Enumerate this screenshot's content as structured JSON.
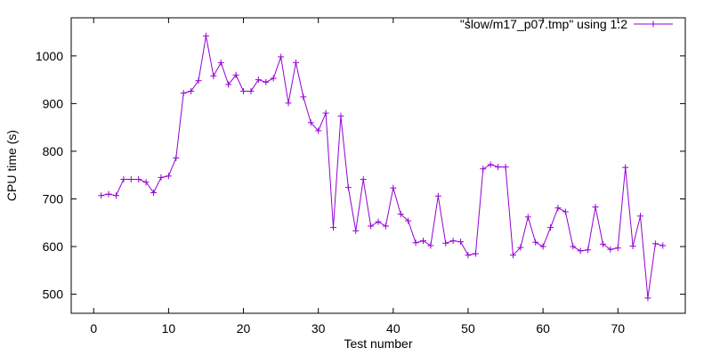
{
  "chart_data": {
    "type": "line",
    "xlabel": "Test number",
    "ylabel": "CPU time (s)",
    "xlim": [
      -3,
      79
    ],
    "ylim": [
      460,
      1080
    ],
    "xticks": [
      0,
      10,
      20,
      30,
      40,
      50,
      60,
      70
    ],
    "yticks": [
      500,
      600,
      700,
      800,
      900,
      1000
    ],
    "grid": false,
    "legend_position": "top-right",
    "series": [
      {
        "name": "\"slow/m17_p07.tmp\" using 1:2",
        "color": "#9400d3",
        "marker": "plus",
        "x": [
          1,
          2,
          3,
          4,
          5,
          6,
          7,
          8,
          9,
          10,
          11,
          12,
          13,
          14,
          15,
          16,
          17,
          18,
          19,
          20,
          21,
          22,
          23,
          24,
          25,
          26,
          27,
          28,
          29,
          30,
          31,
          32,
          33,
          34,
          35,
          36,
          37,
          38,
          39,
          40,
          41,
          42,
          43,
          44,
          45,
          46,
          47,
          48,
          49,
          50,
          51,
          52,
          53,
          54,
          55,
          56,
          57,
          58,
          59,
          60,
          61,
          62,
          63,
          64,
          65,
          66,
          67,
          68,
          69,
          70,
          71,
          72,
          73,
          74,
          75,
          76
        ],
        "y": [
          707,
          710,
          707,
          741,
          741,
          741,
          735,
          713,
          745,
          748,
          786,
          922,
          926,
          948,
          1042,
          958,
          986,
          940,
          960,
          926,
          926,
          950,
          945,
          953,
          998,
          901,
          986,
          914,
          860,
          843,
          880,
          640,
          874,
          724,
          633,
          741,
          643,
          652,
          643,
          723,
          668,
          654,
          608,
          612,
          602,
          706,
          607,
          612,
          610,
          582,
          585,
          763,
          772,
          767,
          767,
          582,
          598,
          662,
          609,
          600,
          640,
          681,
          673,
          600,
          591,
          593,
          683,
          605,
          594,
          597,
          766,
          601,
          664,
          492,
          606,
          602
        ]
      }
    ]
  }
}
